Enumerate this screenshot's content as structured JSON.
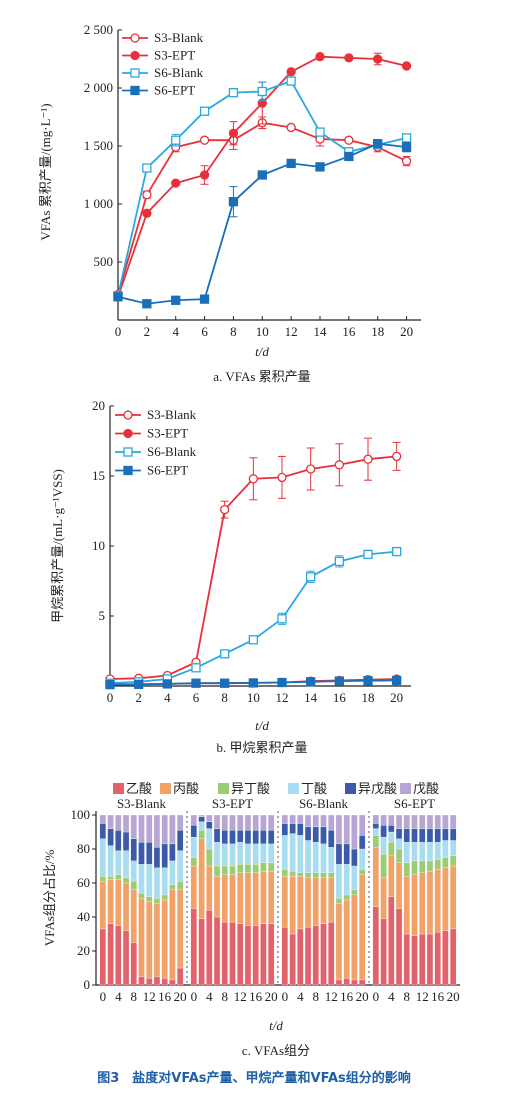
{
  "figure_caption": "图3　盐度对VFAs产量、甲烷产量和VFAs组分的影响",
  "colors": {
    "red": "#e8303a",
    "blue": "#1a6fb8",
    "cyan": "#2aa8e0",
    "acetic": "#e2626c",
    "propionic": "#f0a268",
    "isobutyric": "#9ccc74",
    "butyric": "#a8dcf0",
    "isovaleric": "#3b5aa8",
    "valeric": "#b7a6d4"
  },
  "chart_data": [
    {
      "type": "line",
      "subtitle": "a. VFAs 累积产量",
      "xlabel": "t/d",
      "ylabel": "VFAs 累积产量/(mg·L⁻¹)",
      "xlim": [
        0,
        21
      ],
      "ylim": [
        0,
        2500
      ],
      "xticks": [
        "0",
        "2",
        "4",
        "6",
        "8",
        "10",
        "12",
        "14",
        "16",
        "18",
        "20"
      ],
      "yticks": [
        "500",
        "1 000",
        "1 500",
        "2 000",
        "2 500"
      ],
      "legend_position": "top-left",
      "series": [
        {
          "name": "S3-Blank",
          "marker": "open-circle",
          "color": "#e8303a",
          "x": [
            0,
            2,
            4,
            6,
            8,
            10,
            12,
            14,
            16,
            18,
            20
          ],
          "y": [
            220,
            1080,
            1490,
            1550,
            1550,
            1700,
            1660,
            1560,
            1550,
            1490,
            1370
          ],
          "err": [
            0,
            30,
            40,
            0,
            80,
            50,
            0,
            60,
            0,
            40,
            40
          ]
        },
        {
          "name": "S3-EPT",
          "marker": "filled-circle",
          "color": "#e8303a",
          "x": [
            0,
            2,
            4,
            6,
            8,
            10,
            12,
            14,
            16,
            18,
            20
          ],
          "y": [
            200,
            920,
            1180,
            1250,
            1610,
            1870,
            2140,
            2270,
            2260,
            2250,
            2190
          ],
          "err": [
            0,
            0,
            0,
            80,
            100,
            180,
            0,
            0,
            0,
            50,
            0
          ]
        },
        {
          "name": "S6-Blank",
          "marker": "open-square",
          "color": "#2aa8e0",
          "x": [
            0,
            2,
            4,
            6,
            8,
            10,
            12,
            14,
            16,
            18,
            20
          ],
          "y": [
            210,
            1310,
            1550,
            1800,
            1960,
            1970,
            2060,
            1620,
            1450,
            1510,
            1570
          ],
          "err": [
            0,
            0,
            50,
            0,
            0,
            80,
            0,
            0,
            0,
            0,
            0
          ]
        },
        {
          "name": "S6-EPT",
          "marker": "filled-square",
          "color": "#1a6fb8",
          "x": [
            0,
            2,
            4,
            6,
            8,
            10,
            12,
            14,
            16,
            18,
            20
          ],
          "y": [
            200,
            140,
            170,
            180,
            1020,
            1250,
            1350,
            1320,
            1410,
            1520,
            1490
          ],
          "err": [
            0,
            0,
            0,
            0,
            130,
            0,
            0,
            0,
            0,
            0,
            40
          ]
        }
      ]
    },
    {
      "type": "line",
      "subtitle": "b. 甲烷累积产量",
      "xlabel": "t/d",
      "ylabel": "甲烷累积产量/(mL·g⁻¹VSS)",
      "xlim": [
        0,
        21
      ],
      "ylim": [
        0,
        20
      ],
      "xticks": [
        "0",
        "2",
        "4",
        "6",
        "8",
        "10",
        "12",
        "14",
        "16",
        "18",
        "20"
      ],
      "yticks": [
        "5",
        "10",
        "15",
        "20"
      ],
      "legend_position": "top-left",
      "series": [
        {
          "name": "S3-Blank",
          "marker": "open-circle",
          "color": "#e8303a",
          "x": [
            0,
            2,
            4,
            6,
            8,
            10,
            12,
            14,
            16,
            18,
            20
          ],
          "y": [
            0.5,
            0.55,
            0.75,
            1.7,
            12.6,
            14.8,
            14.9,
            15.5,
            15.8,
            16.2,
            16.4
          ],
          "err": [
            0,
            0,
            0,
            0,
            0.6,
            1.5,
            1.5,
            1.5,
            1.5,
            1.5,
            1.0
          ]
        },
        {
          "name": "S3-EPT",
          "marker": "filled-circle",
          "color": "#e8303a",
          "x": [
            0,
            2,
            4,
            6,
            8,
            10,
            12,
            14,
            16,
            18,
            20
          ],
          "y": [
            0.1,
            0.12,
            0.15,
            0.2,
            0.2,
            0.22,
            0.25,
            0.35,
            0.4,
            0.45,
            0.5
          ],
          "err": [
            0,
            0,
            0,
            0,
            0,
            0,
            0,
            0,
            0,
            0,
            0
          ]
        },
        {
          "name": "S6-Blank",
          "marker": "open-square",
          "color": "#2aa8e0",
          "x": [
            0,
            2,
            4,
            6,
            8,
            10,
            12,
            14,
            16,
            18,
            20
          ],
          "y": [
            0.2,
            0.3,
            0.5,
            1.3,
            2.3,
            3.3,
            4.8,
            7.8,
            8.9,
            9.4,
            9.6
          ],
          "err": [
            0,
            0,
            0,
            0,
            0,
            0,
            0.4,
            0.4,
            0.4,
            0,
            0
          ]
        },
        {
          "name": "S6-EPT",
          "marker": "filled-square",
          "color": "#1a6fb8",
          "x": [
            0,
            2,
            4,
            6,
            8,
            10,
            12,
            14,
            16,
            18,
            20
          ],
          "y": [
            0.1,
            0.12,
            0.15,
            0.2,
            0.2,
            0.22,
            0.25,
            0.3,
            0.35,
            0.38,
            0.4
          ],
          "err": [
            0,
            0,
            0,
            0,
            0,
            0,
            0,
            0,
            0,
            0,
            0
          ]
        }
      ]
    },
    {
      "type": "bar",
      "stacked": true,
      "subtitle": "c. VFAs组分",
      "xlabel": "t/d",
      "ylabel": "VFAs组分占比/%",
      "ylim": [
        0,
        100
      ],
      "yticks": [
        "0",
        "20",
        "40",
        "60",
        "80",
        "100"
      ],
      "xtick_labels": [
        "0",
        "4",
        "8",
        "12",
        "16",
        "20"
      ],
      "legend_position": "top",
      "components": [
        {
          "name": "乙酸",
          "color": "#e2626c"
        },
        {
          "name": "丙酸",
          "color": "#f0a268"
        },
        {
          "name": "异丁酸",
          "color": "#9ccc74"
        },
        {
          "name": "丁酸",
          "color": "#a8dcf0"
        },
        {
          "name": "异戊酸",
          "color": "#3b5aa8"
        },
        {
          "name": "戊酸",
          "color": "#b7a6d4"
        }
      ],
      "groups": [
        {
          "name": "S3-Blank",
          "days": [
            0,
            2,
            4,
            6,
            8,
            10,
            12,
            14,
            16,
            18,
            20
          ],
          "bars": [
            [
              33,
              28,
              3,
              22,
              9,
              5
            ],
            [
              36,
              26,
              2,
              18,
              10,
              8
            ],
            [
              35,
              27,
              3,
              14,
              12,
              9
            ],
            [
              32,
              28,
              3,
              16,
              11,
              10
            ],
            [
              25,
              31,
              5,
              12,
              13,
              14
            ],
            [
              5,
              46,
              3,
              17,
              13,
              16
            ],
            [
              4,
              45,
              3,
              19,
              13,
              16
            ],
            [
              5,
              43,
              3,
              18,
              12,
              19
            ],
            [
              4,
              46,
              3,
              16,
              14,
              17
            ],
            [
              3,
              53,
              3,
              14,
              10,
              17
            ],
            [
              10,
              46,
              5,
              18,
              12,
              9
            ]
          ]
        },
        {
          "name": "S3-EPT",
          "days": [
            0,
            2,
            4,
            6,
            8,
            10,
            12,
            14,
            16,
            18,
            20
          ],
          "bars": [
            [
              45,
              25,
              5,
              12,
              7,
              6
            ],
            [
              39,
              47,
              5,
              5,
              3,
              1
            ],
            [
              44,
              26,
              10,
              12,
              4,
              4
            ],
            [
              40,
              24,
              6,
              14,
              8,
              8
            ],
            [
              37,
              28,
              5,
              13,
              8,
              9
            ],
            [
              37,
              28,
              5,
              13,
              8,
              9
            ],
            [
              36,
              30,
              5,
              13,
              7,
              9
            ],
            [
              35,
              31,
              5,
              12,
              8,
              9
            ],
            [
              35,
              31,
              5,
              12,
              8,
              9
            ],
            [
              36,
              31,
              5,
              11,
              8,
              9
            ],
            [
              36,
              31,
              5,
              11,
              8,
              9
            ]
          ]
        },
        {
          "name": "S6-Blank",
          "days": [
            0,
            2,
            4,
            6,
            8,
            10,
            12,
            14,
            16,
            18,
            20
          ],
          "bars": [
            [
              34,
              30,
              4,
              20,
              7,
              5
            ],
            [
              30,
              34,
              3,
              22,
              6,
              5
            ],
            [
              33,
              31,
              2,
              22,
              7,
              5
            ],
            [
              34,
              29,
              3,
              19,
              8,
              7
            ],
            [
              35,
              28,
              3,
              18,
              9,
              7
            ],
            [
              36,
              27,
              3,
              17,
              10,
              7
            ],
            [
              37,
              26,
              3,
              15,
              10,
              9
            ],
            [
              3,
              45,
              3,
              20,
              12,
              17
            ],
            [
              4,
              46,
              3,
              18,
              12,
              17
            ],
            [
              3,
              50,
              3,
              14,
              10,
              20
            ],
            [
              3,
              62,
              3,
              12,
              8,
              12
            ]
          ]
        },
        {
          "name": "S6-EPT",
          "days": [
            0,
            2,
            4,
            6,
            8,
            10,
            12,
            14,
            16,
            18,
            20
          ],
          "bars": [
            [
              46,
              35,
              7,
              4,
              3,
              5
            ],
            [
              39,
              24,
              14,
              10,
              7,
              6
            ],
            [
              52,
              24,
              8,
              6,
              4,
              6
            ],
            [
              45,
              27,
              8,
              6,
              6,
              8
            ],
            [
              30,
              34,
              8,
              12,
              8,
              8
            ],
            [
              29,
              36,
              8,
              11,
              8,
              8
            ],
            [
              30,
              36,
              7,
              11,
              8,
              8
            ],
            [
              30,
              37,
              6,
              11,
              8,
              8
            ],
            [
              31,
              37,
              6,
              10,
              8,
              8
            ],
            [
              32,
              37,
              6,
              10,
              7,
              8
            ],
            [
              33,
              37,
              6,
              9,
              7,
              8
            ]
          ]
        }
      ]
    }
  ]
}
